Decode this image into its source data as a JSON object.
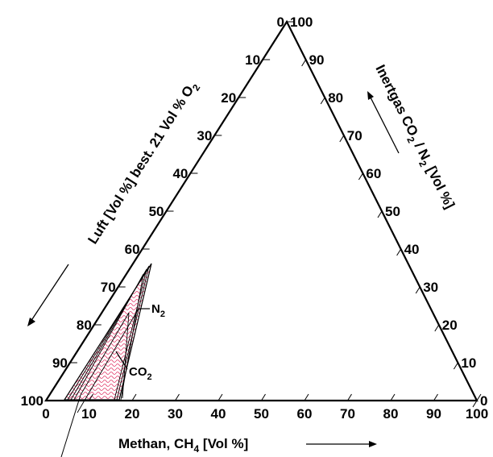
{
  "diagram": {
    "axes": {
      "bottom": {
        "title_main": "Methan, CH",
        "title_sub": "4",
        "title_tail": " [Vol %]",
        "ticks": [
          0,
          10,
          20,
          30,
          40,
          50,
          60,
          70,
          80,
          90,
          100
        ]
      },
      "left": {
        "title_main": "Luft  [Vol %] best. 21 Vol % O",
        "title_sub": "2",
        "ticks": [
          0,
          10,
          20,
          30,
          40,
          50,
          60,
          70,
          80,
          90,
          100
        ]
      },
      "right": {
        "title_a": "Inertgas CO",
        "title_a_sub": "2",
        "title_b": " / N",
        "title_b_sub": "2",
        "title_tail": "  [Vol %]",
        "ticks": [
          100,
          90,
          80,
          70,
          60,
          50,
          40,
          30,
          20,
          10,
          0
        ]
      }
    },
    "regions": {
      "n2": {
        "main": "N",
        "sub": "2"
      },
      "co2": {
        "main": "CO",
        "sub": "2"
      }
    },
    "colors": {
      "line": "#000000",
      "hatch": "#e23b6a"
    }
  }
}
